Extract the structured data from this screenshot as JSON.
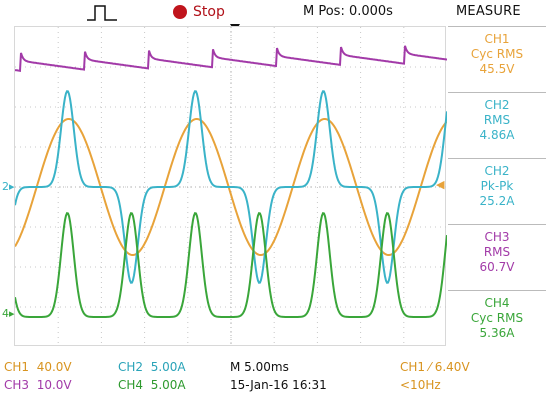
{
  "header": {
    "trigger_icon": "pulse-trigger-icon",
    "run_state": "Stop",
    "mpos": "M Pos: 0.000s",
    "measure_title": "MEASURE"
  },
  "colors": {
    "ch1": "#e8a33a",
    "ch2": "#3ab3c8",
    "ch3": "#a23aa8",
    "ch4": "#3aa63a",
    "grid": "#c8c8c8",
    "stop": "#c0141c"
  },
  "markers": {
    "ch2_ground": "2",
    "ch4_ground": "4",
    "trigger_level": "◀"
  },
  "measurements": [
    {
      "channel": "CH1",
      "type": "Cyc RMS",
      "value": "45.5V",
      "color": "#e8a33a"
    },
    {
      "channel": "CH2",
      "type": "RMS",
      "value": "4.86A",
      "color": "#3ab3c8"
    },
    {
      "channel": "CH2",
      "type": "Pk-Pk",
      "value": "25.2A",
      "color": "#3ab3c8"
    },
    {
      "channel": "CH3",
      "type": "RMS",
      "value": "60.7V",
      "color": "#a23aa8"
    },
    {
      "channel": "CH4",
      "type": "Cyc RMS",
      "value": "5.36A",
      "color": "#3aa63a"
    }
  ],
  "footer": {
    "ch1_label": "CH1",
    "ch1_scale": "40.0V",
    "ch2_label": "CH2",
    "ch2_scale": "5.00A",
    "ch3_label": "CH3",
    "ch3_scale": "10.0V",
    "ch4_label": "CH4",
    "ch4_scale": "5.00A",
    "timebase": "M 5.00ms",
    "date": "15-Jan-16 16:31",
    "trigger_source": "CH1",
    "trigger_level": "6.40V",
    "trigger_freq": "<10Hz"
  }
}
